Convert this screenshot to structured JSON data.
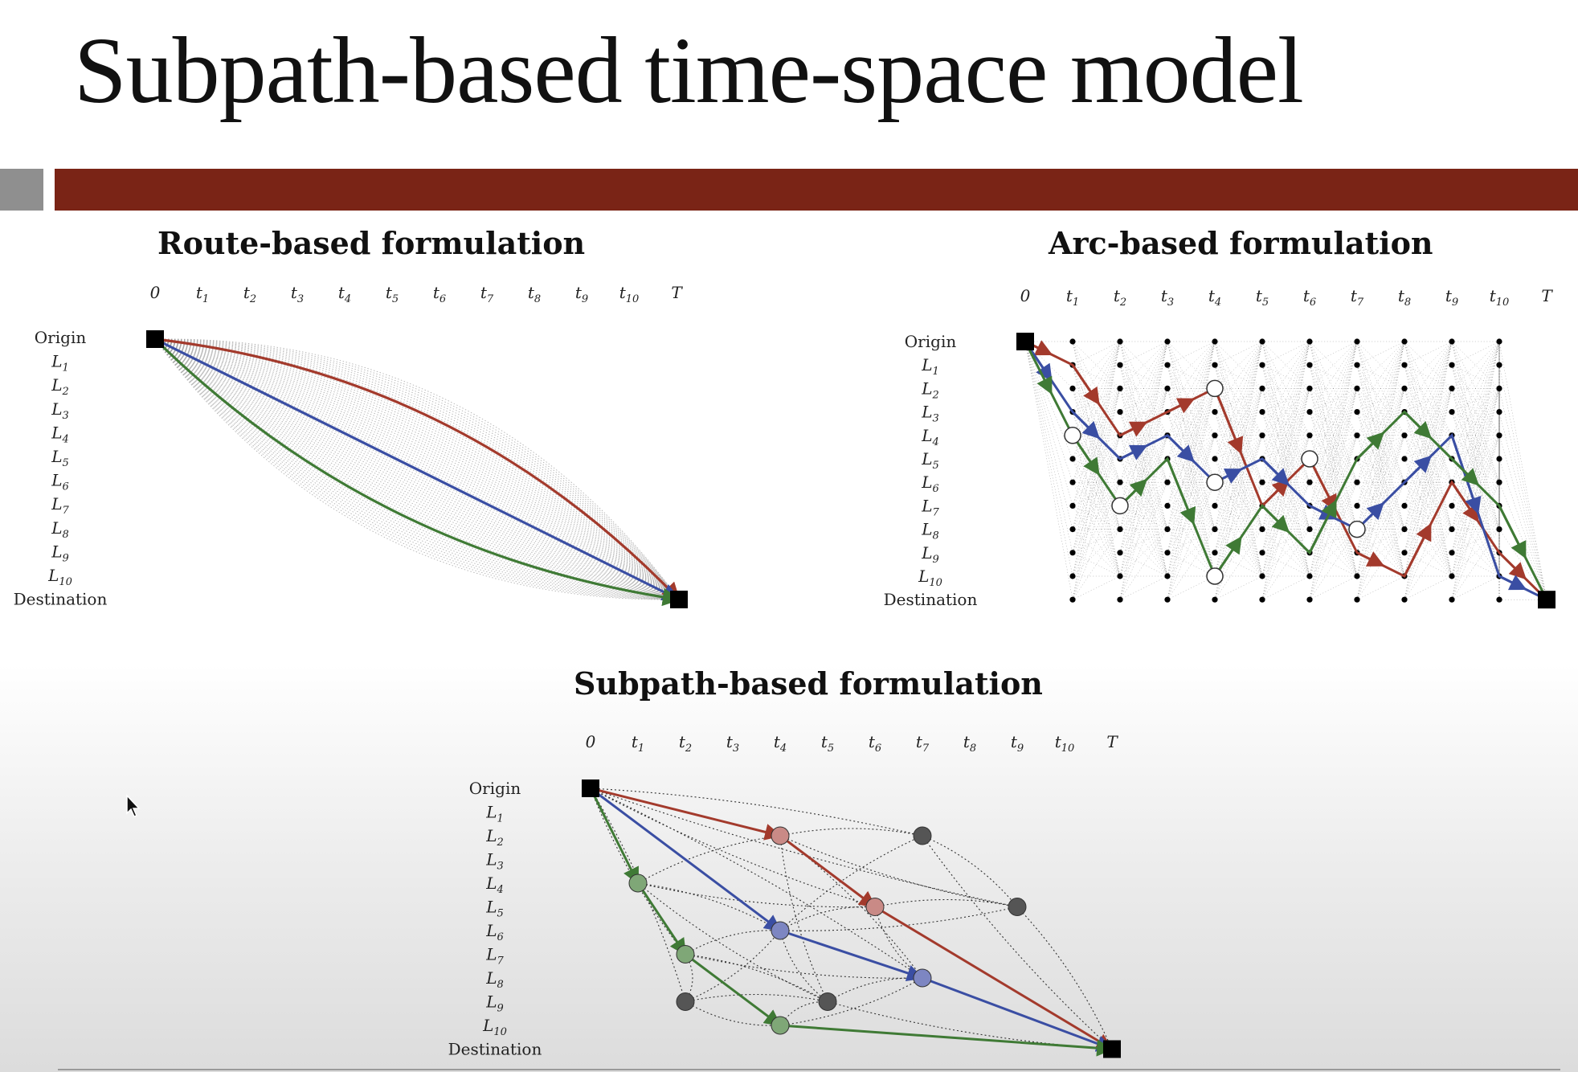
{
  "slide": {
    "title": "Subpath-based time-space model"
  },
  "panels": {
    "route": {
      "heading": "Route-based formulation"
    },
    "arc": {
      "heading": "Arc-based formulation"
    },
    "subpath": {
      "heading": "Subpath-based formulation"
    }
  },
  "axis": {
    "time_labels": [
      "0",
      "t1",
      "t2",
      "t3",
      "t4",
      "t5",
      "t6",
      "t7",
      "t8",
      "t9",
      "t10",
      "T"
    ],
    "row_labels": [
      "Origin",
      "L1",
      "L2",
      "L3",
      "L4",
      "L5",
      "L6",
      "L7",
      "L8",
      "L9",
      "L10",
      "Destination"
    ]
  },
  "colors": {
    "route_red": "#a33a2c",
    "route_blue": "#3a4ea3",
    "route_green": "#3f7a35",
    "node_black": "#000000",
    "grid_gray": "#9a9a9a",
    "header_bar": "#7a2416",
    "header_square": "#8f8f8f"
  },
  "icons": {
    "cursor": "mouse-pointer-icon"
  }
}
